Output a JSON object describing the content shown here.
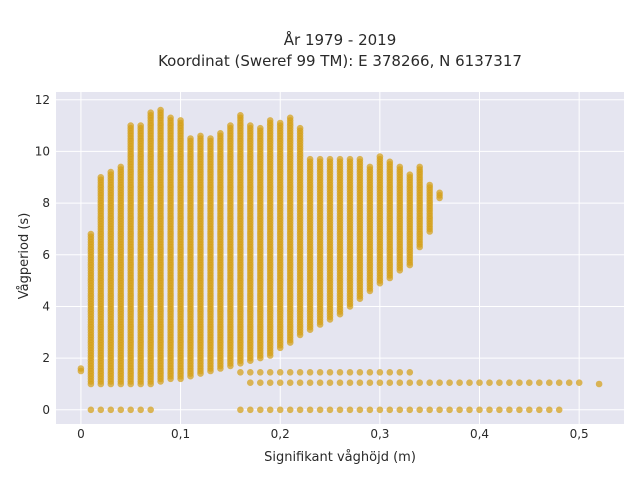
{
  "chart_data": {
    "type": "scatter",
    "title": "År 1979 - 2019",
    "subtitle": "Koordinat (Sweref 99 TM): E 378266, N 6137317",
    "xlabel": "Signifikant våghöjd (m)",
    "ylabel": "Vågperiod (s)",
    "xlim": [
      -0.025,
      0.545
    ],
    "ylim": [
      -0.55,
      12.3
    ],
    "x_ticks": [
      0,
      0.1,
      0.2,
      0.3,
      0.4,
      0.5
    ],
    "x_tick_labels": [
      "0",
      "0,1",
      "0,2",
      "0,3",
      "0,4",
      "0,5"
    ],
    "y_ticks": [
      0,
      2,
      4,
      6,
      8,
      10,
      12
    ],
    "y_tick_labels": [
      "0",
      "2",
      "4",
      "6",
      "8",
      "10",
      "12"
    ],
    "grid": true,
    "marker_color": "#d4a017",
    "background_color": "#e5e5f0",
    "series": [
      {
        "x_step": 0.01,
        "columns": [
          {
            "x": 0.0,
            "y_min": 1.5,
            "y_max": 1.6
          },
          {
            "x": 0.01,
            "y_min": 1.0,
            "y_max": 6.8
          },
          {
            "x": 0.02,
            "y_min": 1.0,
            "y_max": 9.0
          },
          {
            "x": 0.03,
            "y_min": 1.0,
            "y_max": 9.2
          },
          {
            "x": 0.04,
            "y_min": 1.0,
            "y_max": 9.4
          },
          {
            "x": 0.05,
            "y_min": 1.0,
            "y_max": 11.0
          },
          {
            "x": 0.06,
            "y_min": 1.0,
            "y_max": 11.0
          },
          {
            "x": 0.07,
            "y_min": 1.0,
            "y_max": 11.5
          },
          {
            "x": 0.08,
            "y_min": 1.1,
            "y_max": 11.6
          },
          {
            "x": 0.09,
            "y_min": 1.2,
            "y_max": 11.3
          },
          {
            "x": 0.1,
            "y_min": 1.2,
            "y_max": 11.2
          },
          {
            "x": 0.11,
            "y_min": 1.3,
            "y_max": 10.5
          },
          {
            "x": 0.12,
            "y_min": 1.4,
            "y_max": 10.6
          },
          {
            "x": 0.13,
            "y_min": 1.5,
            "y_max": 10.5
          },
          {
            "x": 0.14,
            "y_min": 1.6,
            "y_max": 10.7
          },
          {
            "x": 0.15,
            "y_min": 1.7,
            "y_max": 11.0
          },
          {
            "x": 0.16,
            "y_min": 1.8,
            "y_max": 11.4
          },
          {
            "x": 0.17,
            "y_min": 1.9,
            "y_max": 11.0
          },
          {
            "x": 0.18,
            "y_min": 2.0,
            "y_max": 10.9
          },
          {
            "x": 0.19,
            "y_min": 2.1,
            "y_max": 11.2
          },
          {
            "x": 0.2,
            "y_min": 2.4,
            "y_max": 11.1
          },
          {
            "x": 0.21,
            "y_min": 2.6,
            "y_max": 11.3
          },
          {
            "x": 0.22,
            "y_min": 2.9,
            "y_max": 10.9
          },
          {
            "x": 0.23,
            "y_min": 3.1,
            "y_max": 9.7
          },
          {
            "x": 0.24,
            "y_min": 3.3,
            "y_max": 9.7
          },
          {
            "x": 0.25,
            "y_min": 3.5,
            "y_max": 9.7
          },
          {
            "x": 0.26,
            "y_min": 3.7,
            "y_max": 9.7
          },
          {
            "x": 0.27,
            "y_min": 4.0,
            "y_max": 9.7
          },
          {
            "x": 0.28,
            "y_min": 4.3,
            "y_max": 9.7
          },
          {
            "x": 0.29,
            "y_min": 4.6,
            "y_max": 9.4
          },
          {
            "x": 0.3,
            "y_min": 4.9,
            "y_max": 9.8
          },
          {
            "x": 0.31,
            "y_min": 5.1,
            "y_max": 9.6
          },
          {
            "x": 0.32,
            "y_min": 5.4,
            "y_max": 9.4
          },
          {
            "x": 0.33,
            "y_min": 5.6,
            "y_max": 9.1
          },
          {
            "x": 0.34,
            "y_min": 6.3,
            "y_max": 9.4
          },
          {
            "x": 0.35,
            "y_min": 6.9,
            "y_max": 8.7
          },
          {
            "x": 0.36,
            "y_min": 8.2,
            "y_max": 8.4
          }
        ],
        "band_lower": [
          {
            "x_from": 0.16,
            "x_to": 0.33,
            "y": 1.45
          },
          {
            "x_from": 0.17,
            "x_to": 0.5,
            "y": 1.05
          },
          {
            "x_from": 0.52,
            "x_to": 0.52,
            "y": 1.0
          }
        ],
        "band_zero": [
          {
            "x_from": 0.01,
            "x_to": 0.07,
            "y": 0.0
          },
          {
            "x_from": 0.16,
            "x_to": 0.48,
            "y": 0.0
          }
        ]
      }
    ]
  }
}
